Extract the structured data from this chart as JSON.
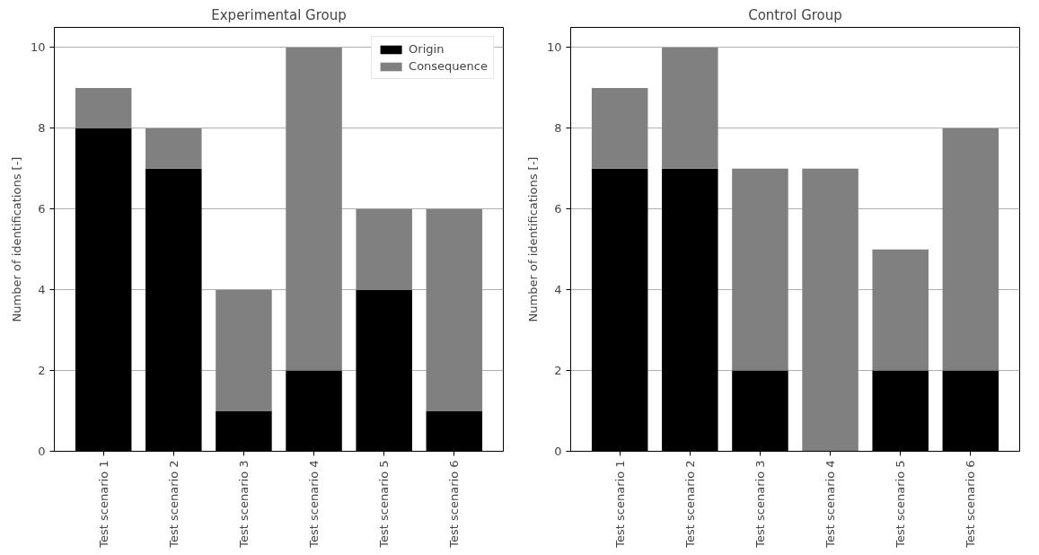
{
  "chart_data": [
    {
      "type": "bar",
      "title": "Experimental Group",
      "ylabel": "Number of identifications [-]",
      "categories": [
        "Test scenario 1",
        "Test scenario 2",
        "Test scenario 3",
        "Test scenario 4",
        "Test scenario 5",
        "Test scenario 6"
      ],
      "stacked": true,
      "ylim": [
        0,
        10.5
      ],
      "yticks": [
        0,
        2,
        4,
        6,
        8,
        10
      ],
      "grid": "y",
      "legend": "top right",
      "series": [
        {
          "name": "Origin",
          "color": "#000000",
          "values": [
            8,
            7,
            1,
            2,
            4,
            1
          ]
        },
        {
          "name": "Consequence",
          "color": "#808080",
          "values": [
            1,
            1,
            3,
            8,
            2,
            5
          ]
        }
      ]
    },
    {
      "type": "bar",
      "title": "Control Group",
      "ylabel": "Number of identifications [-]",
      "categories": [
        "Test scenario 1",
        "Test scenario 2",
        "Test scenario 3",
        "Test scenario 4",
        "Test scenario 5",
        "Test scenario 6"
      ],
      "stacked": true,
      "ylim": [
        0,
        10.5
      ],
      "yticks": [
        0,
        2,
        4,
        6,
        8,
        10
      ],
      "grid": "y",
      "series": [
        {
          "color": "#000000",
          "values": [
            7,
            7,
            2,
            0,
            2,
            2
          ]
        },
        {
          "color": "#808080",
          "values": [
            2,
            3,
            5,
            7,
            3,
            6
          ]
        }
      ]
    }
  ]
}
